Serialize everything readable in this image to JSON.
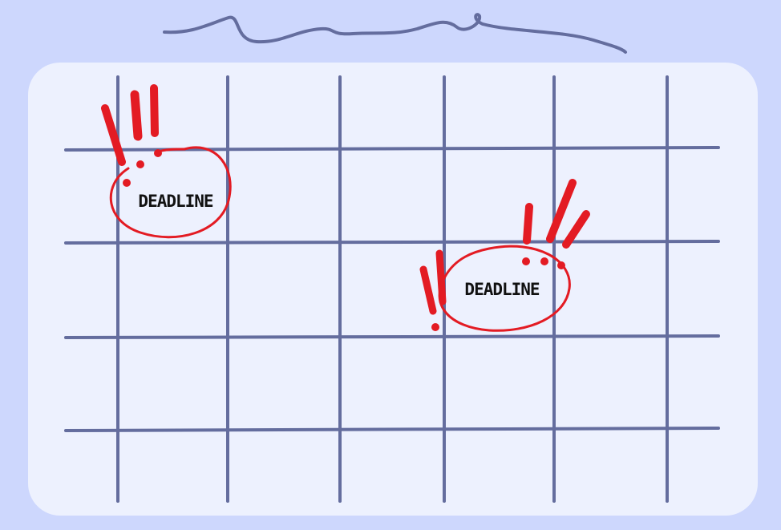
{
  "colors": {
    "background": "#cdd7fd",
    "card": "#edf1fe",
    "grid": "#646d9e",
    "alert": "#e31b23",
    "text": "#111111"
  },
  "deadlines": [
    {
      "label": "DEADLINE"
    },
    {
      "label": "DEADLINE"
    }
  ]
}
